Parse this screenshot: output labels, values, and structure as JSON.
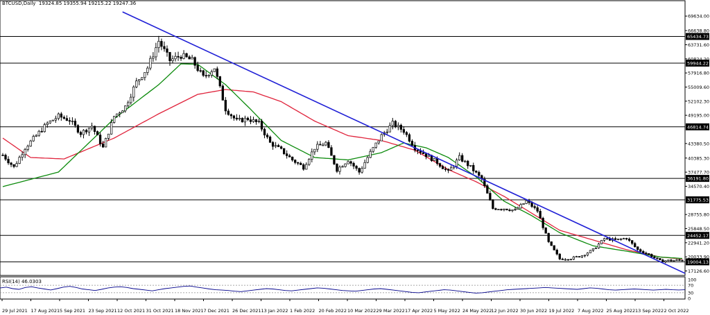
{
  "header": {
    "symbol": "BTCUSD,Daily",
    "ohlc": "19324.85 19355.94 19215.22 19247.36"
  },
  "rsi_header": "RSI(14) 46.0303",
  "colors": {
    "background": "#ffffff",
    "candle_up": "#000000",
    "candle_down": "#000000",
    "trendline": "#1f1fd6",
    "ma_fast": "#0b8a0b",
    "ma_slow": "#e0243c",
    "level_line": "#000000",
    "rsi_line": "#00008b",
    "rsi_levels": "#888888"
  },
  "chart_data": [
    {
      "type": "candlestick",
      "title": "BTCUSD,Daily",
      "ylim": [
        16200,
        71800
      ],
      "y_ticks": [
        {
          "value": 69634.0,
          "label": "69634.00"
        },
        {
          "value": 66638.8,
          "label": "66638.80"
        },
        {
          "value": 63731.6,
          "label": "63731.60"
        },
        {
          "value": 60824.2,
          "label": "60824.20"
        },
        {
          "value": 57916.8,
          "label": "57916.80"
        },
        {
          "value": 55009.6,
          "label": "55009.60"
        },
        {
          "value": 52102.3,
          "label": "52102.30"
        },
        {
          "value": 49195.0,
          "label": "49195.00"
        },
        {
          "value": 43380.5,
          "label": "43380.50"
        },
        {
          "value": 40385.3,
          "label": "40385.30"
        },
        {
          "value": 37477.7,
          "label": "37477.70"
        },
        {
          "value": 34570.4,
          "label": "34570.40"
        },
        {
          "value": 28755.8,
          "label": "28755.80"
        },
        {
          "value": 25848.5,
          "label": "25848.50"
        },
        {
          "value": 22941.2,
          "label": "22941.20"
        },
        {
          "value": 20033.9,
          "label": "20033.90"
        },
        {
          "value": 17126.6,
          "label": "17126.60"
        }
      ],
      "x_labels": [
        "29 Jul 2021",
        "17 Aug 2021",
        "5 Sep 2021",
        "23 Sep 2021",
        "12 Oct 2021",
        "31 Oct 2021",
        "18 Nov 2021",
        "7 Dec 2021",
        "26 Dec 2021",
        "13 Jan 2022",
        "1 Feb 2022",
        "20 Feb 2022",
        "10 Mar 2022",
        "29 Mar 2022",
        "17 Apr 2022",
        "5 May 2022",
        "24 May 2022",
        "12 Jun 2022",
        "30 Jun 2022",
        "19 Jul 2022",
        "7 Aug 2022",
        "25 Aug 2022",
        "13 Sep 2022",
        "2 Oct 2022"
      ],
      "horizontal_levels": [
        {
          "value": 65434.73,
          "label": "65434.73"
        },
        {
          "value": 59944.22,
          "label": "59944.22"
        },
        {
          "value": 46814.74,
          "label": "46814.74"
        },
        {
          "value": 36191.8,
          "label": "36191.80"
        },
        {
          "value": 31775.53,
          "label": "31775.53"
        },
        {
          "value": 24452.17,
          "label": "24452.17"
        },
        {
          "value": 19004.13,
          "label": "19004.13"
        }
      ],
      "trendline": {
        "from": {
          "index": 43,
          "value": 70500
        },
        "to": {
          "index": 235,
          "value": 19300
        }
      },
      "price_path": [
        [
          0,
          41000
        ],
        [
          4,
          38500
        ],
        [
          8,
          42500
        ],
        [
          12,
          45000
        ],
        [
          16,
          47500
        ],
        [
          20,
          49000
        ],
        [
          24,
          48200
        ],
        [
          28,
          45500
        ],
        [
          32,
          47000
        ],
        [
          36,
          42500
        ],
        [
          40,
          49000
        ],
        [
          44,
          51000
        ],
        [
          48,
          56000
        ],
        [
          52,
          59000
        ],
        [
          56,
          64500
        ],
        [
          60,
          60500
        ],
        [
          64,
          61500
        ],
        [
          68,
          60500
        ],
        [
          72,
          57000
        ],
        [
          76,
          59000
        ],
        [
          80,
          50500
        ],
        [
          84,
          48000
        ],
        [
          88,
          48500
        ],
        [
          92,
          47500
        ],
        [
          96,
          43500
        ],
        [
          100,
          42000
        ],
        [
          104,
          40000
        ],
        [
          108,
          38500
        ],
        [
          112,
          42500
        ],
        [
          116,
          43500
        ],
        [
          120,
          38000
        ],
        [
          124,
          40000
        ],
        [
          128,
          37500
        ],
        [
          132,
          41500
        ],
        [
          136,
          45000
        ],
        [
          140,
          47500
        ],
        [
          144,
          46000
        ],
        [
          148,
          42500
        ],
        [
          152,
          41000
        ],
        [
          156,
          39500
        ],
        [
          160,
          37500
        ],
        [
          164,
          40500
        ],
        [
          168,
          38500
        ],
        [
          172,
          36000
        ],
        [
          176,
          30000
        ],
        [
          180,
          30000
        ],
        [
          184,
          29600
        ],
        [
          188,
          31500
        ],
        [
          192,
          29500
        ],
        [
          196,
          23000
        ],
        [
          200,
          19600
        ],
        [
          204,
          19700
        ],
        [
          208,
          20300
        ],
        [
          212,
          21500
        ],
        [
          216,
          23800
        ],
        [
          220,
          23500
        ],
        [
          224,
          23900
        ],
        [
          228,
          21500
        ],
        [
          232,
          20500
        ],
        [
          236,
          19200
        ],
        [
          240,
          19300
        ],
        [
          244,
          19350
        ]
      ],
      "ma_fast": [
        [
          0,
          34500
        ],
        [
          20,
          37500
        ],
        [
          40,
          48500
        ],
        [
          56,
          55500
        ],
        [
          64,
          59800
        ],
        [
          70,
          59700
        ],
        [
          80,
          55500
        ],
        [
          88,
          51000
        ],
        [
          100,
          44000
        ],
        [
          112,
          40500
        ],
        [
          124,
          40000
        ],
        [
          136,
          41500
        ],
        [
          144,
          43500
        ],
        [
          152,
          42500
        ],
        [
          160,
          40500
        ],
        [
          170,
          36500
        ],
        [
          180,
          31500
        ],
        [
          190,
          28500
        ],
        [
          200,
          25000
        ],
        [
          212,
          22300
        ],
        [
          224,
          21200
        ],
        [
          236,
          20000
        ],
        [
          244,
          19700
        ]
      ],
      "ma_slow": [
        [
          0,
          44500
        ],
        [
          10,
          40500
        ],
        [
          22,
          40200
        ],
        [
          40,
          44500
        ],
        [
          56,
          49500
        ],
        [
          70,
          53500
        ],
        [
          80,
          54500
        ],
        [
          90,
          54000
        ],
        [
          100,
          52000
        ],
        [
          112,
          48000
        ],
        [
          124,
          45000
        ],
        [
          136,
          44000
        ],
        [
          148,
          42000
        ],
        [
          160,
          38000
        ],
        [
          170,
          35500
        ],
        [
          180,
          32500
        ],
        [
          190,
          29000
        ],
        [
          200,
          25500
        ],
        [
          212,
          23500
        ],
        [
          224,
          21500
        ],
        [
          236,
          20000
        ],
        [
          244,
          19600
        ]
      ]
    },
    {
      "type": "line",
      "title": "RSI(14) 46.0303",
      "ylim": [
        0,
        100
      ],
      "y_ticks": [
        "100",
        "70",
        "30",
        "0"
      ],
      "levels": [
        70,
        30
      ],
      "values": [
        55,
        60,
        52,
        48,
        58,
        62,
        55,
        50,
        45,
        52,
        60,
        64,
        58,
        50,
        46,
        42,
        48,
        55,
        60,
        62,
        58,
        52,
        48,
        44,
        40,
        46,
        52,
        56,
        60,
        64,
        66,
        60,
        55,
        50,
        46,
        44,
        42,
        38,
        36,
        40,
        44,
        48,
        52,
        50,
        46,
        42,
        40,
        44,
        48,
        52,
        56,
        54,
        50,
        46,
        42,
        40,
        38,
        42,
        46,
        50,
        52,
        48,
        44,
        40,
        36,
        32,
        30,
        34,
        38,
        42,
        46,
        44,
        40,
        36,
        32,
        28,
        30,
        34,
        38,
        42,
        46,
        48,
        50,
        52,
        54,
        56,
        58,
        56,
        54,
        52,
        50,
        48,
        52,
        56,
        54,
        50,
        46,
        44,
        46,
        48,
        50,
        48,
        46,
        44,
        46,
        48,
        46,
        45,
        46
      ]
    }
  ]
}
